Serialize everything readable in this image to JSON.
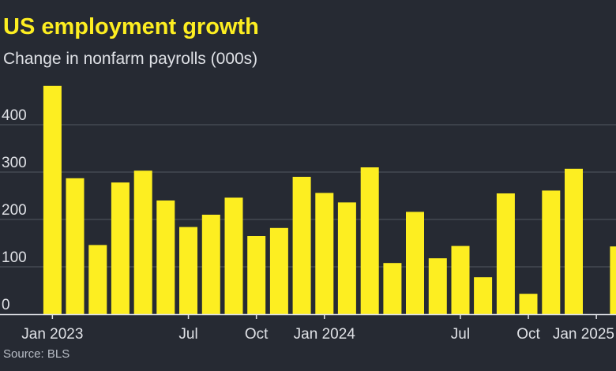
{
  "header": {
    "title": "US employment growth",
    "subtitle": "Change in nonfarm payrolls (000s)"
  },
  "footer": {
    "source": "Source: BLS"
  },
  "colors": {
    "background": "#262a33",
    "bar": "#fdee21",
    "gridline": "#4a4f58",
    "text": "#dfe1e6"
  },
  "chart_data": {
    "type": "bar",
    "title": "US employment growth",
    "subtitle": "Change in nonfarm payrolls (000s)",
    "xlabel": "",
    "ylabel": "",
    "ylim": [
      0,
      500
    ],
    "yticks": [
      0,
      100,
      200,
      300,
      400
    ],
    "grid": true,
    "categories": [
      "Jan 2023",
      "Feb 2023",
      "Mar 2023",
      "Apr 2023",
      "May 2023",
      "Jun 2023",
      "Jul 2023",
      "Aug 2023",
      "Sep 2023",
      "Oct 2023",
      "Nov 2023",
      "Dec 2023",
      "Jan 2024",
      "Feb 2024",
      "Mar 2024",
      "Apr 2024",
      "May 2024",
      "Jun 2024",
      "Jul 2024",
      "Aug 2024",
      "Sep 2024",
      "Oct 2024",
      "Nov 2024",
      "Dec 2024",
      "Jan 2025",
      "Feb 2025"
    ],
    "values": [
      482,
      287,
      146,
      278,
      303,
      240,
      184,
      210,
      246,
      165,
      182,
      290,
      256,
      236,
      310,
      108,
      216,
      118,
      144,
      78,
      255,
      43,
      261,
      307,
      0,
      143
    ],
    "xtick_labels": [
      {
        "index": 0,
        "label": "Jan 2023"
      },
      {
        "index": 6,
        "label": "Jul"
      },
      {
        "index": 9,
        "label": "Oct"
      },
      {
        "index": 12,
        "label": "Jan 2024"
      },
      {
        "index": 18,
        "label": "Jul"
      },
      {
        "index": 21,
        "label": "Oct"
      },
      {
        "index": 24,
        "label": "Jan 2025"
      }
    ]
  }
}
